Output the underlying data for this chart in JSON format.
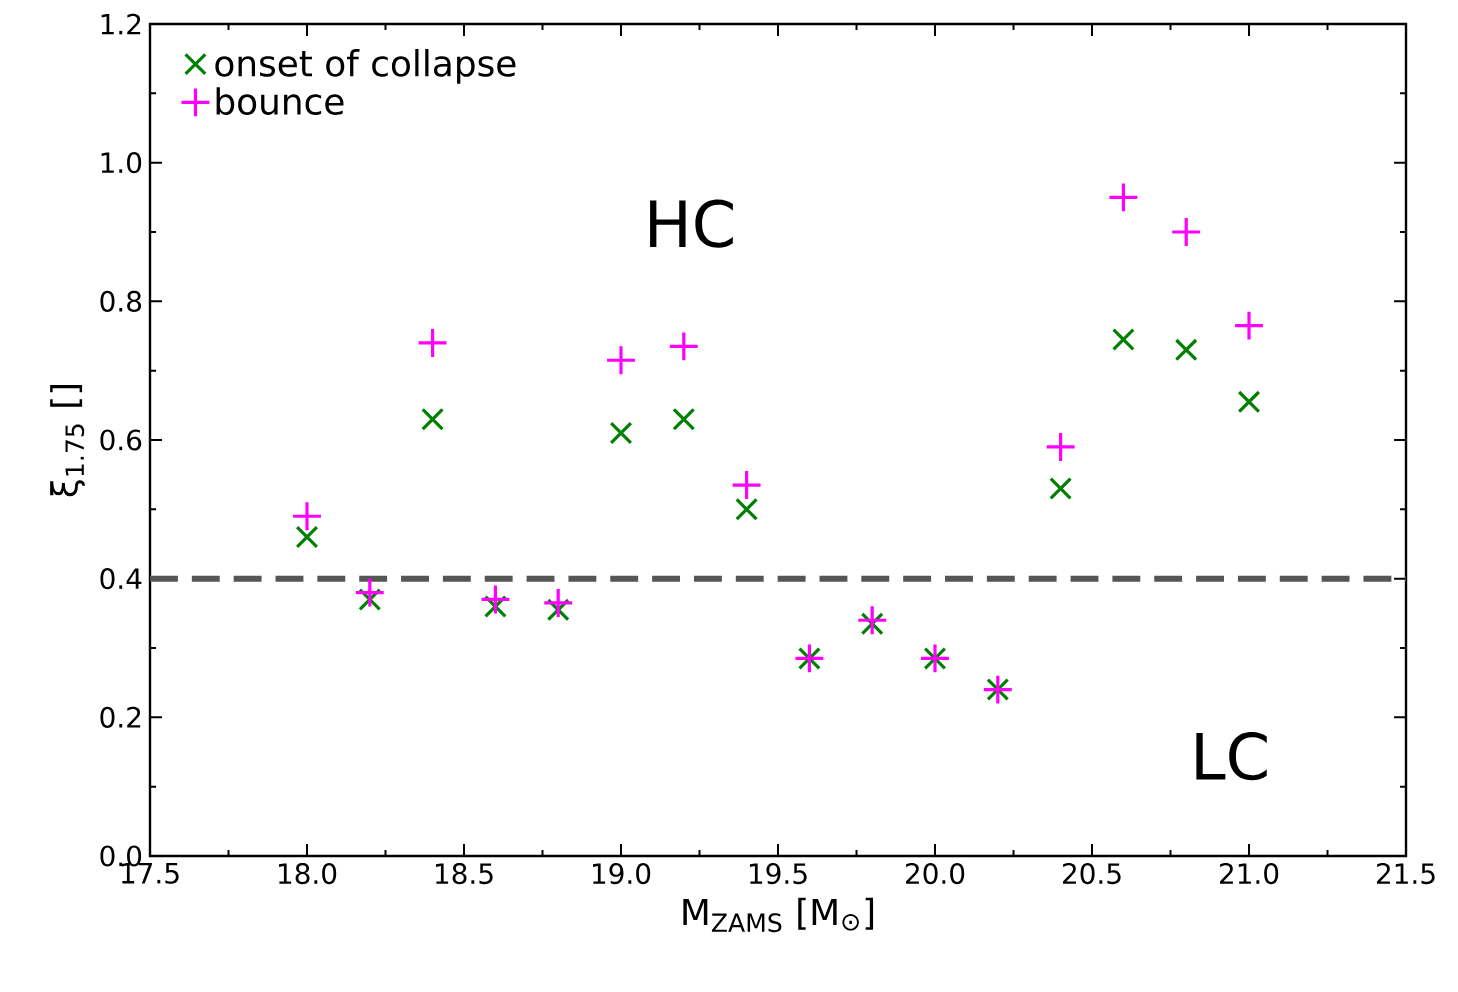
{
  "chart_data": {
    "type": "scatter",
    "xlabel": "M$_{ZAMS}$ [M$_{⊙}$]",
    "ylabel": "ξ$_{1.75}$ []",
    "x": [
      18.0,
      18.2,
      18.4,
      18.6,
      18.8,
      19.0,
      19.2,
      19.4,
      19.6,
      19.8,
      20.0,
      20.2,
      20.4,
      20.6,
      20.8,
      21.0
    ],
    "series": [
      {
        "name": "onset of collapse",
        "color": "#008000",
        "marker": "cross",
        "values": [
          0.46,
          0.37,
          0.63,
          0.36,
          0.355,
          0.61,
          0.63,
          0.5,
          0.285,
          0.335,
          0.285,
          0.24,
          0.53,
          0.745,
          0.73,
          0.655
        ]
      },
      {
        "name": "bounce",
        "color": "#ff00ff",
        "marker": "plus",
        "values": [
          0.49,
          0.38,
          0.74,
          0.37,
          0.365,
          0.715,
          0.735,
          0.535,
          0.285,
          0.34,
          0.285,
          0.24,
          0.59,
          0.95,
          0.9,
          0.765
        ]
      }
    ],
    "xlim": [
      17.5,
      21.5
    ],
    "xticks": [
      17.5,
      {
        "value": 18,
        "label": "18.0"
      },
      18.5,
      {
        "value": 19,
        "label": "19.0"
      },
      19.5,
      {
        "value": 20,
        "label": "20.0"
      },
      20.5,
      {
        "value": 21,
        "label": "21.0"
      },
      21.5
    ],
    "ylim": [
      0,
      1.2
    ],
    "yticks": [
      {
        "value": 0,
        "label": "0.0"
      },
      0.2,
      0.4,
      0.6,
      0.8,
      {
        "value": 1,
        "label": "1.0"
      },
      1.2
    ],
    "ref_lines": [
      {
        "axis": "y",
        "value": 0.4,
        "color": "#555555",
        "line_style": "dashed"
      }
    ],
    "annotations": [
      "HC",
      "LC"
    ],
    "legend": "top left"
  }
}
